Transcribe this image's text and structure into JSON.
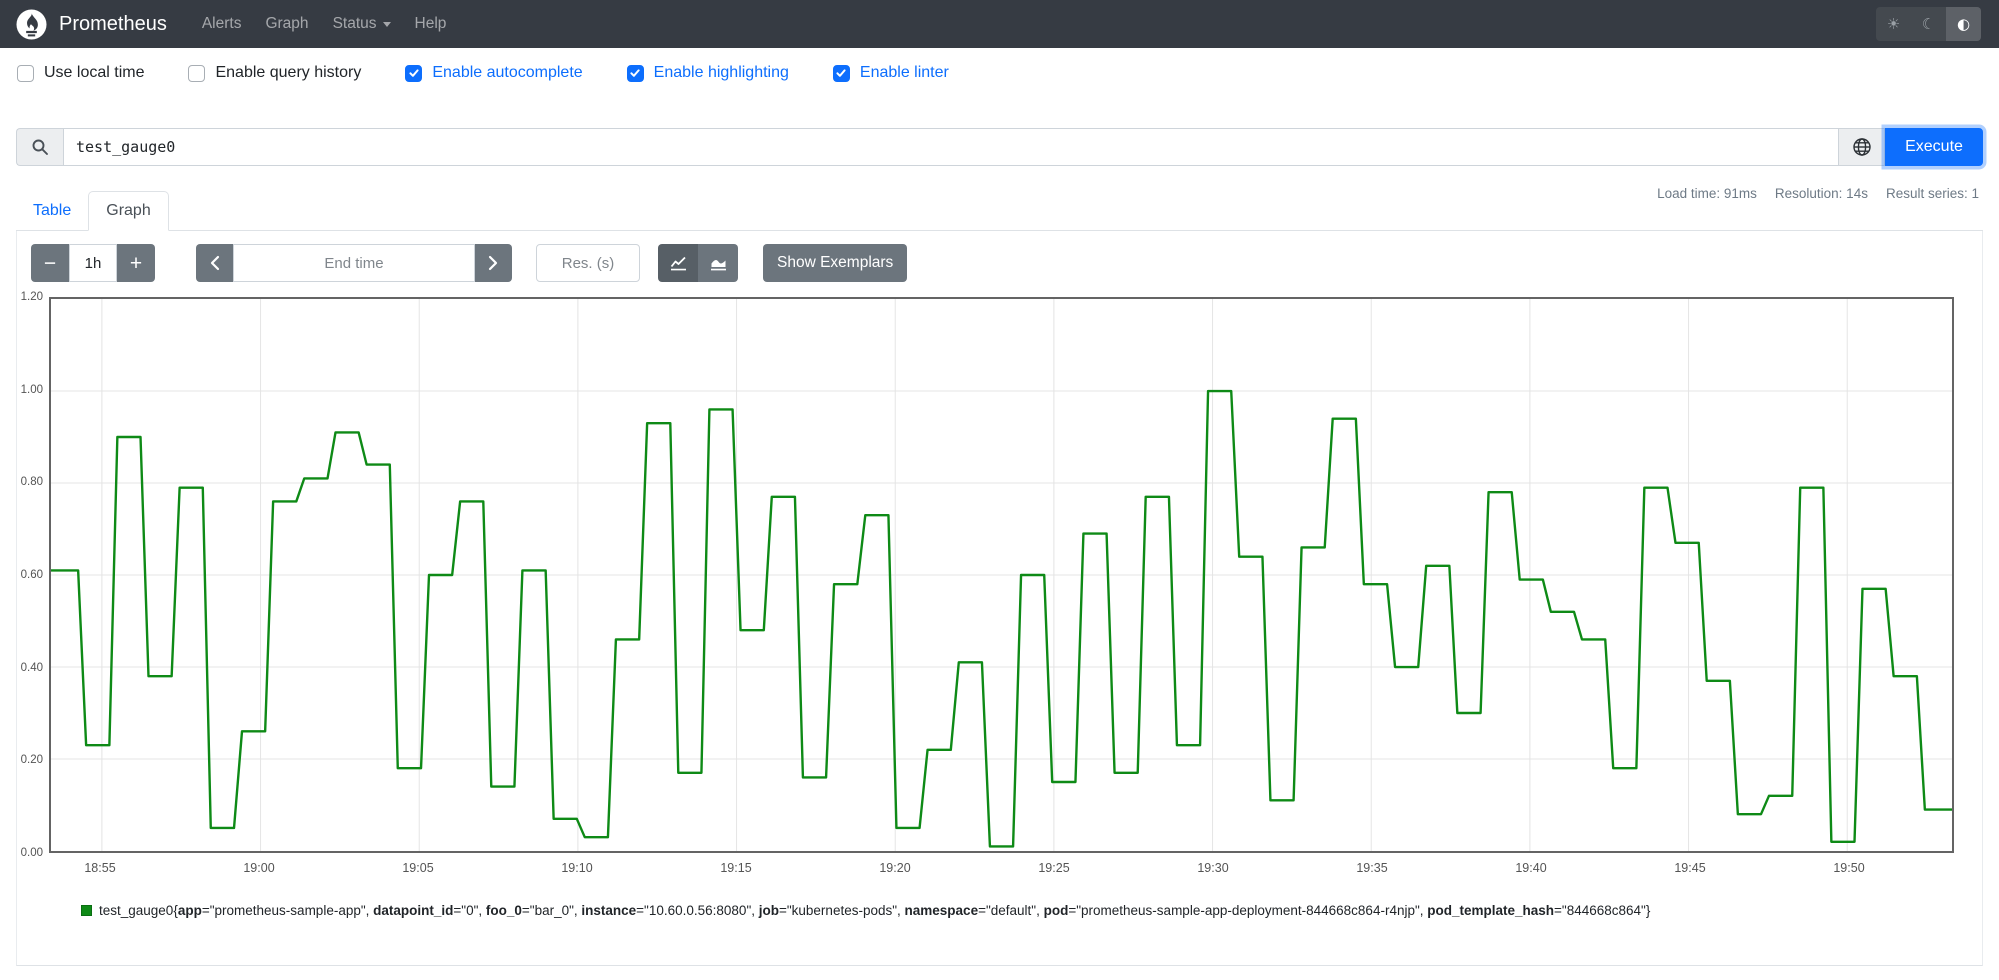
{
  "navbar": {
    "brand": "Prometheus",
    "items": [
      "Alerts",
      "Graph",
      "Status",
      "Help"
    ],
    "theme_toggle": {
      "sun_glyph": "☀",
      "moon_glyph": "☾",
      "auto_glyph": "◐"
    }
  },
  "options": [
    {
      "label": "Use local time",
      "checked": false
    },
    {
      "label": "Enable query history",
      "checked": false
    },
    {
      "label": "Enable autocomplete",
      "checked": true
    },
    {
      "label": "Enable highlighting",
      "checked": true
    },
    {
      "label": "Enable linter",
      "checked": true
    }
  ],
  "query": {
    "value": "test_gauge0",
    "execute_label": "Execute"
  },
  "tabs": {
    "table": "Table",
    "graph": "Graph"
  },
  "stats": {
    "load_time": "Load time: 91ms",
    "resolution": "Resolution: 14s",
    "result_series": "Result series: 1"
  },
  "controls": {
    "minus": "−",
    "plus": "+",
    "range": "1h",
    "end_time_placeholder": "End time",
    "res_placeholder": "Res. (s)",
    "show_exemplars": "Show Exemplars"
  },
  "chart_data": {
    "type": "line",
    "step": true,
    "title": "",
    "xlabel": "",
    "ylabel": "",
    "ylim": [
      0,
      1.2
    ],
    "grid": true,
    "legend_position": "bottom",
    "x_tick_labels": [
      "18:55",
      "19:00",
      "19:05",
      "19:10",
      "19:15",
      "19:20",
      "19:25",
      "19:30",
      "19:35",
      "19:40",
      "19:45",
      "19:50"
    ],
    "y_tick_labels": [
      "0.00",
      "0.20",
      "0.40",
      "0.60",
      "0.80",
      "1.00",
      "1.20"
    ],
    "series": [
      {
        "name": "test_gauge0",
        "color": "#0e8a16",
        "values": [
          0.61,
          0.23,
          0.9,
          0.38,
          0.79,
          0.05,
          0.26,
          0.76,
          0.81,
          0.91,
          0.84,
          0.18,
          0.6,
          0.76,
          0.14,
          0.61,
          0.07,
          0.03,
          0.46,
          0.93,
          0.17,
          0.96,
          0.48,
          0.77,
          0.16,
          0.58,
          0.73,
          0.05,
          0.22,
          0.41,
          0.01,
          0.6,
          0.15,
          0.69,
          0.17,
          0.77,
          0.23,
          1.0,
          0.64,
          0.11,
          0.66,
          0.94,
          0.58,
          0.4,
          0.62,
          0.3,
          0.78,
          0.59,
          0.52,
          0.46,
          0.18,
          0.79,
          0.67,
          0.37,
          0.08,
          0.12,
          0.79,
          0.02,
          0.57,
          0.38,
          0.09
        ]
      }
    ]
  },
  "legend": {
    "metric": "test_gauge0",
    "labels": [
      [
        "app",
        "prometheus-sample-app"
      ],
      [
        "datapoint_id",
        "0"
      ],
      [
        "foo_0",
        "bar_0"
      ],
      [
        "instance",
        "10.60.0.56:8080"
      ],
      [
        "job",
        "kubernetes-pods"
      ],
      [
        "namespace",
        "default"
      ],
      [
        "pod",
        "prometheus-sample-app-deployment-844668c864-r4njp"
      ],
      [
        "pod_template_hash",
        "844668c864"
      ]
    ]
  }
}
